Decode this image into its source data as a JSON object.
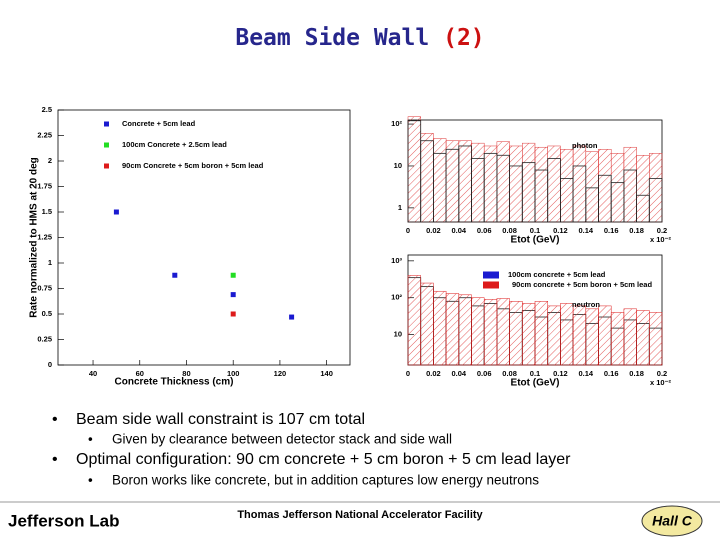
{
  "title_parts": [
    "Beam Side Wall",
    "(2)"
  ],
  "bullets": [
    {
      "text": "Beam side wall constraint is 107 cm total",
      "sub": "Given by clearance between detector stack and side wall"
    },
    {
      "text": "Optimal configuration: 90 cm concrete + 5 cm boron + 5 cm lead layer",
      "sub": "Boron works like concrete, but in addition captures low energy neutrons"
    }
  ],
  "footer": {
    "left": "Jefferson Lab",
    "center": "Thomas Jefferson National Accelerator Facility",
    "right": "Hall C"
  },
  "chart_data": [
    {
      "type": "scatter",
      "xlabel": "Concrete Thickness (cm)",
      "ylabel": "Rate normalized to HMS at 20 deg",
      "xlim": [
        25,
        150
      ],
      "xticks": [
        40,
        60,
        80,
        100,
        120,
        140
      ],
      "ylim": [
        0,
        2.5
      ],
      "yticks": [
        0,
        0.25,
        0.5,
        0.75,
        1,
        1.25,
        1.5,
        1.75,
        2,
        2.25,
        2.5
      ],
      "series": [
        {
          "name": "Concrete + 5cm lead",
          "color": "#1a1ad0",
          "x": [
            50,
            75,
            100,
            125
          ],
          "values": [
            1.5,
            0.88,
            0.69,
            0.47
          ]
        },
        {
          "name": "100cm Concrete + 2.5cm lead",
          "color": "#22dd22",
          "x": [
            100
          ],
          "values": [
            0.88
          ]
        },
        {
          "name": "90cm Concrete + 5cm boron + 5cm lead",
          "color": "#dd1a1a",
          "x": [
            100
          ],
          "values": [
            0.5
          ]
        }
      ]
    },
    {
      "type": "histogram",
      "title": "photon",
      "xlabel": "Etot (GeV)",
      "multiplier": "x 10⁻²",
      "log_y": true,
      "bins": [
        0,
        0.01,
        0.02,
        0.03,
        0.04,
        0.05,
        0.06,
        0.07,
        0.08,
        0.09,
        0.1,
        0.11,
        0.12,
        0.13,
        0.14,
        0.15,
        0.16,
        0.17,
        0.18,
        0.19,
        0.2
      ],
      "xlim": [
        0,
        0.2
      ],
      "xticks": [
        0,
        0.02,
        0.04,
        0.06,
        0.08,
        0.1,
        0.12,
        0.14,
        0.16,
        0.18,
        0.2
      ],
      "ylim": [
        0.46,
        125
      ],
      "yticks": [
        1,
        10,
        {
          "value": 100,
          "label": "10²"
        }
      ],
      "series": [
        {
          "color": "#dd3333",
          "fill": "hatched",
          "values": [
            150,
            60,
            45,
            40,
            40,
            35,
            30,
            38,
            30,
            35,
            28,
            30,
            25,
            30,
            22,
            25,
            20,
            28,
            18,
            20
          ]
        },
        {
          "color": "#222222",
          "fill": "outline",
          "values": [
            120,
            40,
            20,
            25,
            30,
            15,
            20,
            18,
            10,
            12,
            8,
            15,
            5,
            10,
            3,
            6,
            4,
            8,
            2,
            5
          ]
        }
      ]
    },
    {
      "type": "histogram",
      "title": "neutron",
      "xlabel": "Etot (GeV)",
      "multiplier": "x 10⁻²",
      "log_y": true,
      "bins": [
        0,
        0.01,
        0.02,
        0.03,
        0.04,
        0.05,
        0.06,
        0.07,
        0.08,
        0.09,
        0.1,
        0.11,
        0.12,
        0.13,
        0.14,
        0.15,
        0.16,
        0.17,
        0.18,
        0.19,
        0.2
      ],
      "xlim": [
        0,
        0.2
      ],
      "xticks": [
        0,
        0.02,
        0.04,
        0.06,
        0.08,
        0.1,
        0.12,
        0.14,
        0.16,
        0.18,
        0.2
      ],
      "ylim": [
        1.5,
        1440
      ],
      "yticks": [
        10,
        {
          "value": 100,
          "label": "10²"
        },
        {
          "value": 1000,
          "label": "10³"
        }
      ],
      "series": [
        {
          "name": "100cm concrete + 5cm lead",
          "color": "#1a1ad0",
          "fill": "outline",
          "values": [
            350,
            200,
            100,
            80,
            100,
            60,
            70,
            50,
            40,
            45,
            30,
            40,
            25,
            35,
            20,
            30,
            15,
            25,
            20,
            15
          ]
        },
        {
          "name": "90cm concrete + 5cm boron + 5cm lead",
          "color": "#dd1a1a",
          "fill": "hatched",
          "values": [
            400,
            250,
            150,
            130,
            120,
            100,
            90,
            95,
            80,
            70,
            80,
            60,
            70,
            60,
            50,
            60,
            40,
            50,
            45,
            40
          ]
        }
      ]
    }
  ]
}
